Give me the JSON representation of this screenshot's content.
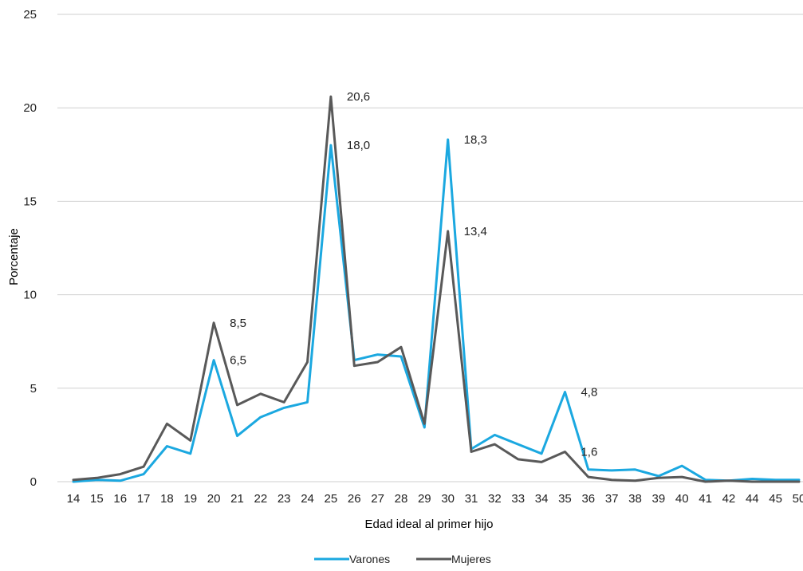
{
  "chart_data": {
    "type": "line",
    "title": "",
    "xlabel": "Edad ideal al primer hijo",
    "ylabel": "Porcentaje",
    "ylim": [
      0,
      25
    ],
    "yticks": [
      "0",
      "5",
      "10",
      "15",
      "20",
      "25"
    ],
    "ytick_values": [
      0,
      5,
      10,
      15,
      20,
      25
    ],
    "grid": true,
    "legend_position": "bottom",
    "categories": [
      "14",
      "15",
      "16",
      "17",
      "18",
      "19",
      "20",
      "21",
      "22",
      "23",
      "24",
      "25",
      "26",
      "27",
      "28",
      "29",
      "30",
      "31",
      "32",
      "33",
      "34",
      "35",
      "36",
      "37",
      "38",
      "39",
      "40",
      "41",
      "42",
      "44",
      "45",
      "50"
    ],
    "series": [
      {
        "name": "Varones",
        "color": "#1ba8e0",
        "values": [
          0.0,
          0.1,
          0.05,
          0.4,
          1.9,
          1.5,
          6.5,
          2.45,
          3.45,
          3.95,
          4.25,
          18.0,
          6.5,
          6.8,
          6.7,
          2.9,
          18.3,
          1.75,
          2.5,
          2.0,
          1.5,
          4.8,
          0.65,
          0.6,
          0.65,
          0.3,
          0.85,
          0.1,
          0.05,
          0.15,
          0.1,
          0.1
        ]
      },
      {
        "name": "Mujeres",
        "color": "#595959",
        "values": [
          0.1,
          0.2,
          0.4,
          0.8,
          3.1,
          2.2,
          8.5,
          4.1,
          4.7,
          4.25,
          6.4,
          20.6,
          6.2,
          6.4,
          7.2,
          3.1,
          13.4,
          1.6,
          2.0,
          1.2,
          1.05,
          1.6,
          0.25,
          0.1,
          0.05,
          0.2,
          0.25,
          0.0,
          0.05,
          0.0,
          0.0,
          0.0
        ]
      }
    ],
    "annotations": [
      {
        "text": "8,5",
        "category": "20",
        "value": 8.5,
        "series": "Mujeres"
      },
      {
        "text": "6,5",
        "category": "20",
        "value": 6.5,
        "series": "Varones"
      },
      {
        "text": "20,6",
        "category": "25",
        "value": 20.6,
        "series": "Mujeres"
      },
      {
        "text": "18,0",
        "category": "25",
        "value": 18.0,
        "series": "Varones"
      },
      {
        "text": "18,3",
        "category": "30",
        "value": 18.3,
        "series": "Varones"
      },
      {
        "text": "13,4",
        "category": "30",
        "value": 13.4,
        "series": "Mujeres"
      },
      {
        "text": "4,8",
        "category": "35",
        "value": 4.8,
        "series": "Varones"
      },
      {
        "text": "1,6",
        "category": "35",
        "value": 1.6,
        "series": "Mujeres"
      }
    ]
  }
}
